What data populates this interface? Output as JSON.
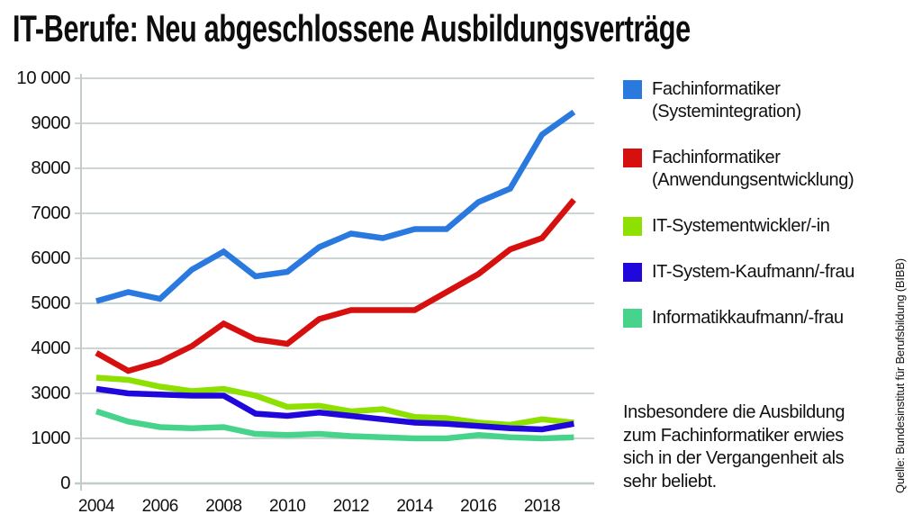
{
  "title": "IT-Berufe: Neu abgeschlossene Ausbildungsverträge",
  "note": "Insbesondere die Ausbildung zum Fachinformatiker erwies sich in der Vergangenheit als sehr beliebt.",
  "source": "Quelle: Bundesinstitut für Berufsbildung (BIBB)",
  "colors": {
    "grid": "#ccd4d4",
    "axis": "#c2cccc",
    "text": "#111111"
  },
  "chart_data": {
    "type": "line",
    "title": "IT-Berufe: Neu abgeschlossene Ausbildungsverträge",
    "x": [
      2004,
      2005,
      2006,
      2007,
      2008,
      2009,
      2010,
      2011,
      2012,
      2013,
      2014,
      2015,
      2016,
      2017,
      2018,
      2019
    ],
    "x_tick_labels": [
      "2004",
      "2006",
      "2008",
      "2010",
      "2012",
      "2014",
      "2016",
      "2018"
    ],
    "x_tick_years": [
      2004,
      2006,
      2008,
      2010,
      2012,
      2014,
      2016,
      2018
    ],
    "y_tick_labels": [
      "10 000",
      "9000",
      "8000",
      "7000",
      "6000",
      "5000",
      "4000",
      "3000",
      "1000",
      "0"
    ],
    "y_tick_values": [
      10000,
      9000,
      8000,
      7000,
      6000,
      5000,
      4000,
      3000,
      1000,
      0
    ],
    "ylim": [
      0,
      10000
    ],
    "grid": true,
    "legend_position": "right",
    "line_width": 6.5,
    "z_order": [
      4,
      2,
      3,
      1,
      0
    ],
    "series": [
      {
        "name": "Fachinformatiker (Systemintegration)",
        "label_lines": [
          "Fachinformatiker",
          "(Systemintegration)"
        ],
        "color": "#2979df",
        "values": [
          5050,
          5250,
          5100,
          5750,
          6150,
          5600,
          5700,
          6250,
          6550,
          6450,
          6650,
          6650,
          7250,
          7550,
          8750,
          9250
        ]
      },
      {
        "name": "Fachinformatiker (Anwendungsentwicklung)",
        "label_lines": [
          "Fachinformatiker",
          "(Anwendungsentwicklung)"
        ],
        "color": "#d6100f",
        "values": [
          3900,
          3500,
          3700,
          4050,
          4550,
          4200,
          4100,
          4650,
          4850,
          4850,
          4850,
          5250,
          5650,
          6200,
          6450,
          7300
        ]
      },
      {
        "name": "IT-Systementwickler/-in",
        "label_lines": [
          "IT-Systementwickler/-in"
        ],
        "color": "#8de000",
        "values": [
          3350,
          3300,
          3150,
          3050,
          3100,
          2900,
          2400,
          2450,
          2200,
          2300,
          1950,
          1900,
          1700,
          1600,
          1850,
          1700
        ]
      },
      {
        "name": "IT-System-Kaufmann/-frau",
        "label_lines": [
          "IT-System-Kaufmann/-frau"
        ],
        "color": "#2007dc",
        "values": [
          3100,
          3000,
          2950,
          2900,
          2900,
          2100,
          2000,
          2150,
          2000,
          1850,
          1700,
          1650,
          1550,
          1450,
          1400,
          1650
        ]
      },
      {
        "name": "Informatikkaufmann/-frau",
        "label_lines": [
          "Informatikkaufmann/-frau"
        ],
        "color": "#47d38c",
        "values": [
          2200,
          1750,
          1500,
          1450,
          1500,
          1200,
          1150,
          1200,
          1100,
          1050,
          1000,
          1000,
          1150,
          1050,
          1000,
          1050
        ]
      }
    ]
  }
}
